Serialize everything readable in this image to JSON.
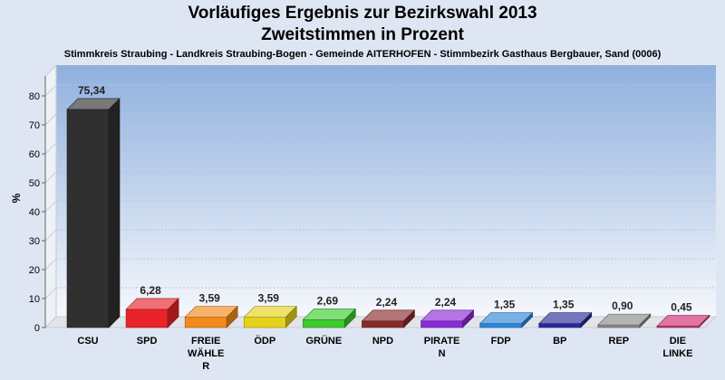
{
  "chart_data": {
    "type": "bar",
    "title": "Vorläufiges Ergebnis zur Bezirkswahl 2013",
    "subtitle": "Zweitstimmen in Prozent",
    "caption": "Stimmkreis Straubing - Landkreis Straubing-Bogen - Gemeinde AITERHOFEN - Stimmbezirk Gasthaus Bergbauer, Sand (0006)",
    "ylabel": "%",
    "ylim": [
      0,
      85
    ],
    "yticks": [
      0,
      10,
      20,
      30,
      40,
      50,
      60,
      70,
      80
    ],
    "grid": true,
    "categories": [
      [
        "CSU"
      ],
      [
        "SPD"
      ],
      [
        "FREIE",
        "WÄHLE",
        "R"
      ],
      [
        "ÖDP"
      ],
      [
        "GRÜNE"
      ],
      [
        "NPD"
      ],
      [
        "PIRATE",
        "N"
      ],
      [
        "FDP"
      ],
      [
        "BP"
      ],
      [
        "REP"
      ],
      [
        "DIE",
        "LINKE"
      ]
    ],
    "values": [
      75.34,
      6.28,
      3.59,
      3.59,
      2.69,
      2.24,
      2.24,
      1.35,
      1.35,
      0.9,
      0.45
    ],
    "value_labels": [
      "75,34",
      "6,28",
      "3,59",
      "3,59",
      "2,69",
      "2,24",
      "2,24",
      "1,35",
      "1,35",
      "0,90",
      "0,45"
    ],
    "colors": [
      "#303030",
      "#e8242a",
      "#f28a1c",
      "#e6d21a",
      "#3ccc2c",
      "#8a2a2a",
      "#8a2ad6",
      "#2a86d8",
      "#2a2a9a",
      "#8a8a8a",
      "#cc2a72"
    ]
  }
}
